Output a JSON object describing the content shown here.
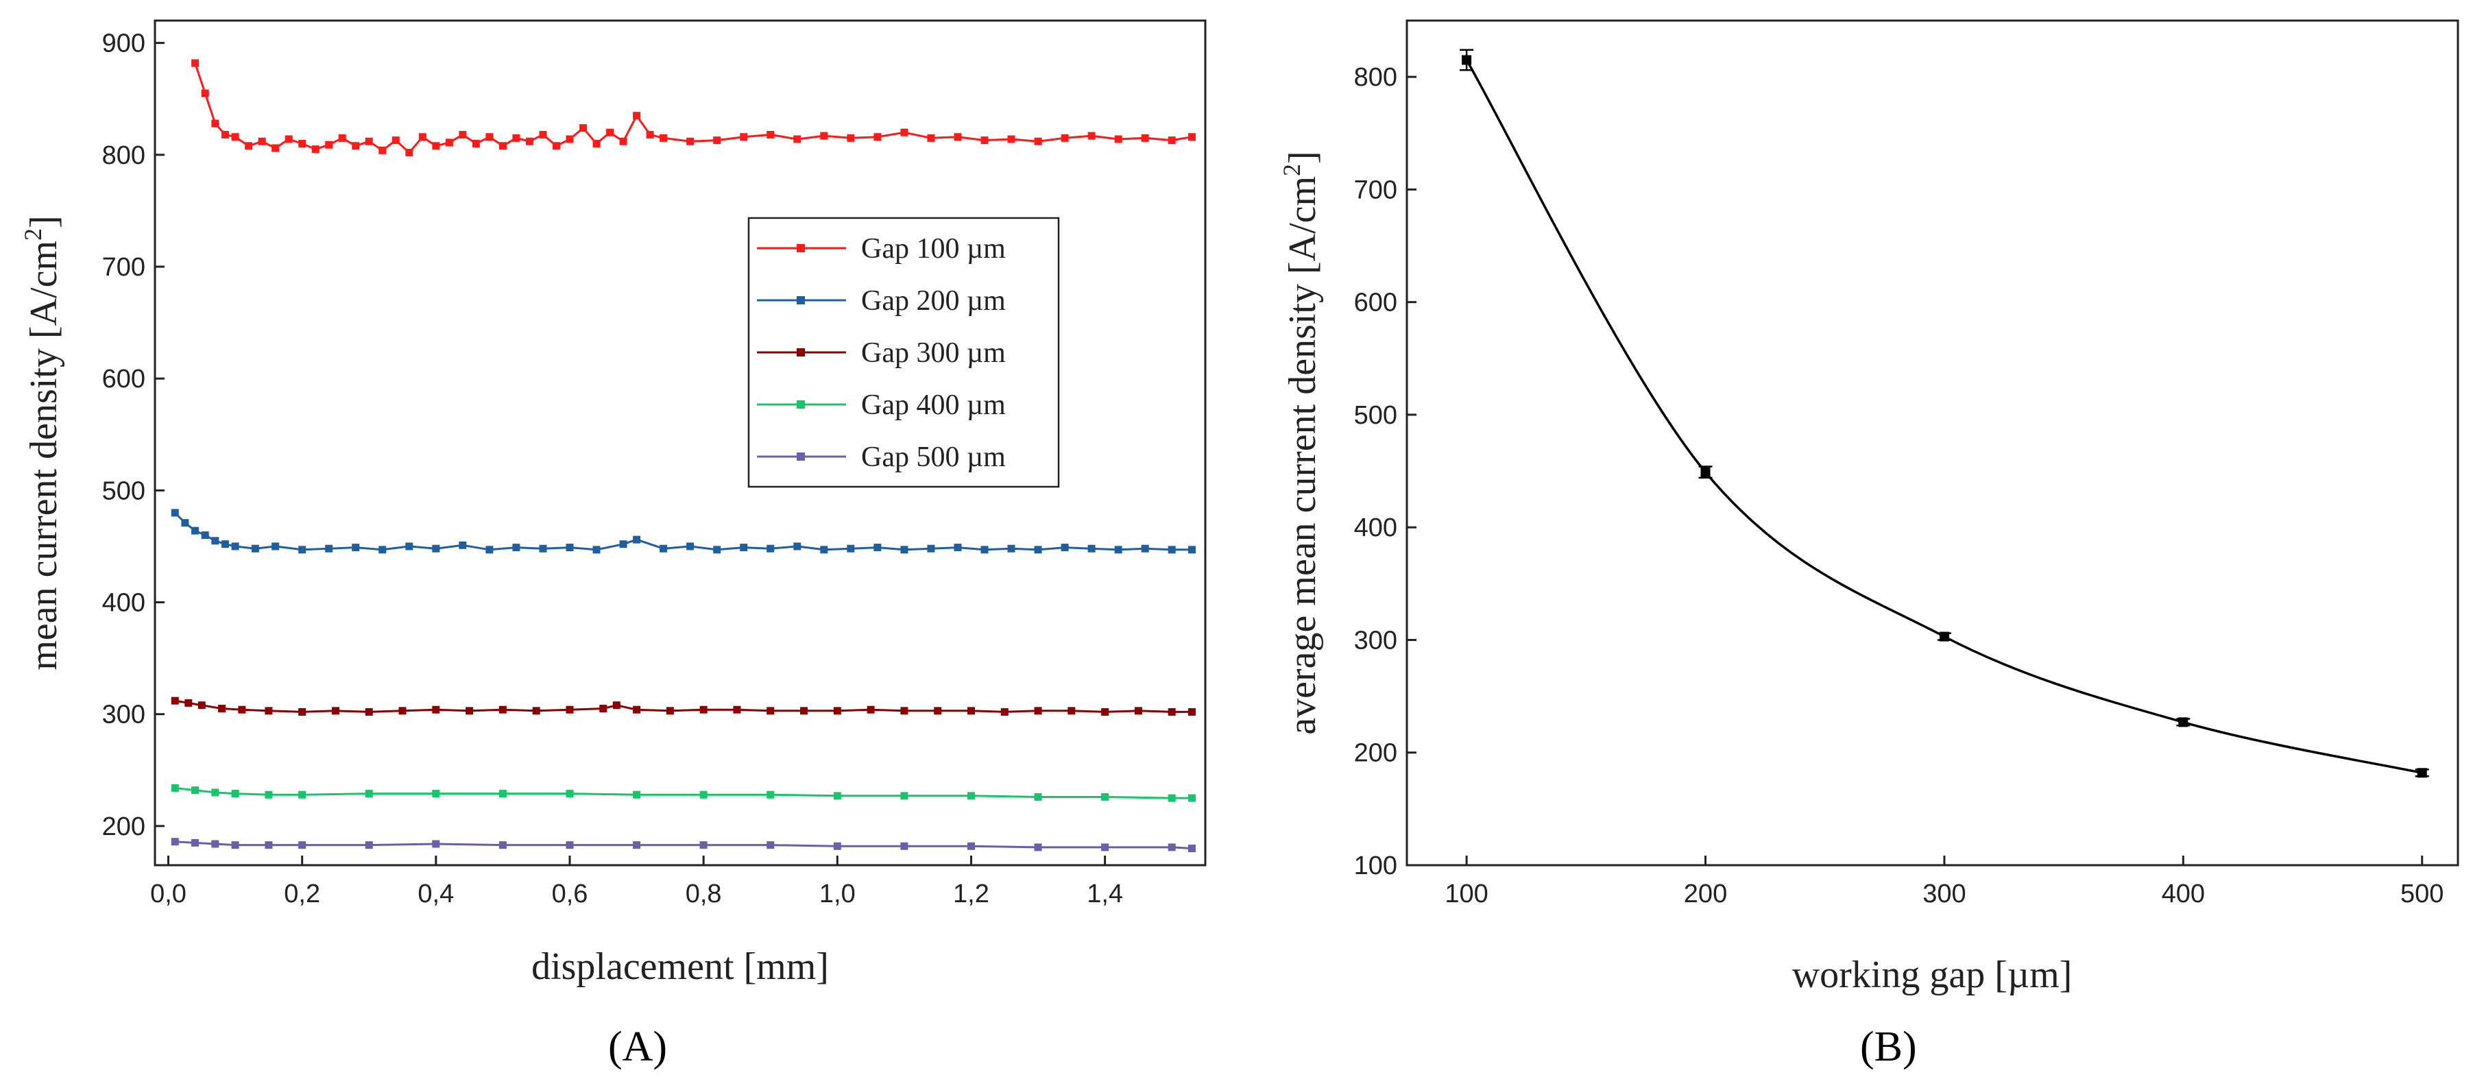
{
  "figure": {
    "panel_a_label": "(A)",
    "panel_b_label": "(B)"
  },
  "chart_data": [
    {
      "type": "line",
      "panel": "A",
      "xlabel": "displacement [mm]",
      "ylabel_prefix": "mean current density [A/cm",
      "ylabel_sup": "2",
      "ylabel_suffix": "]",
      "xlim": [
        -0.02,
        1.55
      ],
      "ylim": [
        165,
        920
      ],
      "xticks": [
        0.0,
        0.2,
        0.4,
        0.6,
        0.8,
        1.0,
        1.2,
        1.4
      ],
      "xtick_labels": [
        "0,0",
        "0,2",
        "0,4",
        "0,6",
        "0,8",
        "1,0",
        "1,2",
        "1,4"
      ],
      "yticks": [
        200,
        300,
        400,
        500,
        600,
        700,
        800,
        900
      ],
      "ytick_labels": [
        "200",
        "300",
        "400",
        "500",
        "600",
        "700",
        "800",
        "900"
      ],
      "legend_position": "center-right",
      "series": [
        {
          "name": "Gap 100 µm",
          "color": "#ff1a1a",
          "x": [
            0.04,
            0.055,
            0.07,
            0.085,
            0.1,
            0.12,
            0.14,
            0.16,
            0.18,
            0.2,
            0.22,
            0.24,
            0.26,
            0.28,
            0.3,
            0.32,
            0.34,
            0.36,
            0.38,
            0.4,
            0.42,
            0.44,
            0.46,
            0.48,
            0.5,
            0.52,
            0.54,
            0.56,
            0.58,
            0.6,
            0.62,
            0.64,
            0.66,
            0.68,
            0.7,
            0.72,
            0.74,
            0.78,
            0.82,
            0.86,
            0.9,
            0.94,
            0.98,
            1.02,
            1.06,
            1.1,
            1.14,
            1.18,
            1.22,
            1.26,
            1.3,
            1.34,
            1.38,
            1.42,
            1.46,
            1.5,
            1.53
          ],
          "values": [
            882,
            855,
            828,
            818,
            816,
            808,
            812,
            806,
            814,
            810,
            805,
            809,
            815,
            808,
            812,
            804,
            813,
            802,
            816,
            808,
            811,
            818,
            810,
            816,
            808,
            815,
            812,
            818,
            808,
            814,
            824,
            810,
            820,
            812,
            835,
            818,
            815,
            812,
            813,
            816,
            818,
            814,
            817,
            815,
            816,
            820,
            815,
            816,
            813,
            814,
            812,
            815,
            817,
            814,
            815,
            813,
            816
          ]
        },
        {
          "name": "Gap 200 µm",
          "color": "#1f5fa0",
          "x": [
            0.01,
            0.025,
            0.04,
            0.055,
            0.07,
            0.085,
            0.1,
            0.13,
            0.16,
            0.2,
            0.24,
            0.28,
            0.32,
            0.36,
            0.4,
            0.44,
            0.48,
            0.52,
            0.56,
            0.6,
            0.64,
            0.68,
            0.7,
            0.74,
            0.78,
            0.82,
            0.86,
            0.9,
            0.94,
            0.98,
            1.02,
            1.06,
            1.1,
            1.14,
            1.18,
            1.22,
            1.26,
            1.3,
            1.34,
            1.38,
            1.42,
            1.46,
            1.5,
            1.53
          ],
          "values": [
            480,
            471,
            464,
            460,
            455,
            452,
            450,
            448,
            450,
            447,
            448,
            449,
            447,
            450,
            448,
            451,
            447,
            449,
            448,
            449,
            447,
            452,
            456,
            448,
            450,
            447,
            449,
            448,
            450,
            447,
            448,
            449,
            447,
            448,
            449,
            447,
            448,
            447,
            449,
            448,
            447,
            448,
            447,
            447
          ]
        },
        {
          "name": "Gap 300 µm",
          "color": "#8b0000",
          "x": [
            0.01,
            0.03,
            0.05,
            0.08,
            0.11,
            0.15,
            0.2,
            0.25,
            0.3,
            0.35,
            0.4,
            0.45,
            0.5,
            0.55,
            0.6,
            0.65,
            0.67,
            0.7,
            0.75,
            0.8,
            0.85,
            0.9,
            0.95,
            1.0,
            1.05,
            1.1,
            1.15,
            1.2,
            1.25,
            1.3,
            1.35,
            1.4,
            1.45,
            1.5,
            1.53
          ],
          "values": [
            312,
            310,
            308,
            305,
            304,
            303,
            302,
            303,
            302,
            303,
            304,
            303,
            304,
            303,
            304,
            305,
            308,
            304,
            303,
            304,
            304,
            303,
            303,
            303,
            304,
            303,
            303,
            303,
            302,
            303,
            303,
            302,
            303,
            302,
            302
          ]
        },
        {
          "name": "Gap 400 µm",
          "color": "#19c46b",
          "x": [
            0.01,
            0.04,
            0.07,
            0.1,
            0.15,
            0.2,
            0.3,
            0.4,
            0.5,
            0.6,
            0.7,
            0.8,
            0.9,
            1.0,
            1.1,
            1.2,
            1.3,
            1.4,
            1.5,
            1.53
          ],
          "values": [
            234,
            232,
            230,
            229,
            228,
            228,
            229,
            229,
            229,
            229,
            228,
            228,
            228,
            227,
            227,
            227,
            226,
            226,
            225,
            225
          ]
        },
        {
          "name": "Gap 500 µm",
          "color": "#6a5fa8",
          "x": [
            0.01,
            0.04,
            0.07,
            0.1,
            0.15,
            0.2,
            0.3,
            0.4,
            0.5,
            0.6,
            0.7,
            0.8,
            0.9,
            1.0,
            1.1,
            1.2,
            1.3,
            1.4,
            1.5,
            1.53
          ],
          "values": [
            186,
            185,
            184,
            183,
            183,
            183,
            183,
            184,
            183,
            183,
            183,
            183,
            183,
            182,
            182,
            182,
            181,
            181,
            181,
            180
          ]
        }
      ]
    },
    {
      "type": "line",
      "panel": "B",
      "xlabel": "working gap [µm]",
      "ylabel_prefix": "average mean current density [A/cm",
      "ylabel_sup": "2",
      "ylabel_suffix": "]",
      "xlim": [
        75,
        515
      ],
      "ylim": [
        100,
        850
      ],
      "xticks": [
        100,
        200,
        300,
        400,
        500
      ],
      "xtick_labels": [
        "100",
        "200",
        "300",
        "400",
        "500"
      ],
      "yticks": [
        100,
        200,
        300,
        400,
        500,
        600,
        700,
        800
      ],
      "ytick_labels": [
        "100",
        "200",
        "300",
        "400",
        "500",
        "600",
        "700",
        "800"
      ],
      "series": [
        {
          "name": "average mean current density",
          "color": "#000000",
          "x": [
            100,
            200,
            300,
            400,
            500
          ],
          "values": [
            815,
            449,
            303,
            227,
            182
          ],
          "error": [
            9,
            5,
            3,
            3,
            3
          ]
        }
      ]
    }
  ]
}
